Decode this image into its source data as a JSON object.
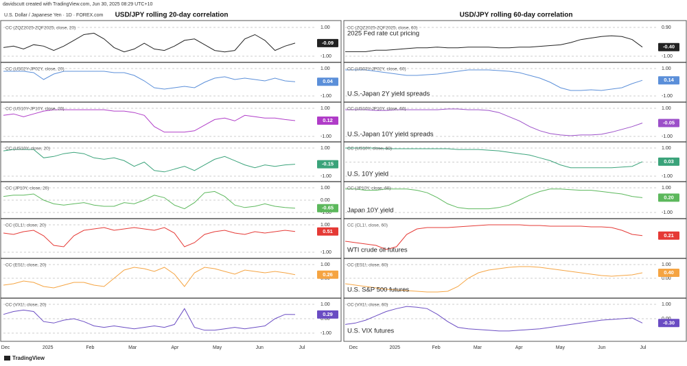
{
  "header": {
    "credit": "davidscutt created with TradingView.com, Jun 30, 2025 08:29 UTC+10",
    "symbol": "U.S. Dollar / Japanese Yen · 1D · FOREX.com",
    "logo": "TradingView"
  },
  "columns": [
    {
      "title": "USD/JPY rolling 20-day correlation",
      "x_labels": [
        "Dec",
        "2025",
        "Feb",
        "Mar",
        "Apr",
        "May",
        "Jun",
        "Jul"
      ]
    },
    {
      "title": "USD/JPY rolling 60-day correlation",
      "x_labels": [
        "Dec",
        "2025",
        "Feb",
        "Mar",
        "Apr",
        "May",
        "Jun",
        "Jul"
      ]
    }
  ],
  "chart_data": [
    {
      "type": "line",
      "ylim": [
        -1,
        1
      ],
      "yticks": [
        {
          "value": 1,
          "label": "1.00"
        },
        {
          "value": -1,
          "label": "-1.00"
        }
      ],
      "series": [
        {
          "name": "CC (ZQZ2025-ZQF2025, close, 20)",
          "color": "#222222",
          "last_label": "-0.09",
          "values": [
            -0.4,
            -0.3,
            -0.5,
            -0.2,
            -0.3,
            -0.6,
            -0.3,
            0.1,
            0.5,
            0.6,
            0.2,
            -0.4,
            -0.7,
            -0.5,
            -0.1,
            -0.5,
            -0.6,
            -0.3,
            0.1,
            0.2,
            -0.2,
            -0.6,
            -0.7,
            -0.6,
            0.2,
            0.5,
            0.1,
            -0.6,
            -0.3,
            -0.09
          ]
        }
      ]
    },
    {
      "type": "line",
      "ylim": [
        -1,
        1
      ],
      "yticks": [
        {
          "value": 1,
          "label": "1.00"
        },
        {
          "value": -1,
          "label": "-1.00"
        }
      ],
      "series": [
        {
          "name": "CC (US02Y-JP02Y, close, 20)",
          "color": "#5b8fd9",
          "last_label": "0.04",
          "values": [
            0.8,
            0.8,
            0.8,
            0.7,
            0.2,
            0.6,
            0.8,
            0.8,
            0.8,
            0.8,
            0.8,
            0.7,
            0.7,
            0.5,
            0.1,
            -0.4,
            -0.5,
            -0.4,
            -0.3,
            -0.4,
            0.0,
            0.3,
            0.4,
            0.2,
            0.3,
            0.2,
            0.1,
            0.3,
            0.1,
            0.04
          ]
        }
      ]
    },
    {
      "type": "line",
      "ylim": [
        -1,
        1
      ],
      "yticks": [
        {
          "value": 1,
          "label": "1.00"
        },
        {
          "value": -1,
          "label": "-1.00"
        }
      ],
      "series": [
        {
          "name": "CC (US10Y-JP10Y, close, 20)",
          "color": "#b03cc8",
          "last_label": "0.12",
          "values": [
            0.5,
            0.6,
            0.4,
            0.6,
            0.8,
            0.9,
            0.9,
            0.9,
            0.9,
            0.9,
            0.9,
            0.8,
            0.8,
            0.7,
            0.5,
            -0.3,
            -0.7,
            -0.7,
            -0.7,
            -0.6,
            -0.2,
            0.2,
            0.3,
            0.1,
            0.5,
            0.4,
            0.3,
            0.3,
            0.2,
            0.12
          ]
        }
      ]
    },
    {
      "type": "line",
      "ylim": [
        -1,
        1
      ],
      "yticks": [
        {
          "value": 1,
          "label": "1.00"
        },
        {
          "value": -1,
          "label": "-1.00"
        }
      ],
      "series": [
        {
          "name": "CC (US10Y, close, 20)",
          "color": "#3aa37a",
          "last_label": "-0.15",
          "values": [
            0.8,
            0.9,
            0.9,
            0.9,
            0.3,
            0.4,
            0.6,
            0.7,
            0.6,
            0.3,
            0.2,
            0.3,
            0.1,
            -0.3,
            0.0,
            -0.6,
            -0.7,
            -0.5,
            -0.3,
            -0.6,
            -0.2,
            0.2,
            0.4,
            0.1,
            -0.2,
            -0.4,
            -0.2,
            -0.3,
            -0.2,
            -0.15
          ]
        }
      ]
    },
    {
      "type": "line",
      "ylim": [
        -1,
        1
      ],
      "yticks": [
        {
          "value": 1,
          "label": "1.00"
        },
        {
          "value": 0,
          "label": "0.00"
        },
        {
          "value": -1,
          "label": "-1.00"
        }
      ],
      "series": [
        {
          "name": "CC (JP10Y, close, 20)",
          "color": "#5cb85c",
          "last_label": "-0.65",
          "values": [
            0.3,
            0.4,
            0.4,
            0.5,
            0.0,
            -0.3,
            -0.4,
            -0.3,
            -0.2,
            -0.4,
            -0.5,
            -0.5,
            -0.2,
            -0.3,
            0.0,
            0.4,
            0.2,
            -0.4,
            -0.7,
            -0.2,
            0.6,
            0.7,
            0.3,
            -0.4,
            -0.6,
            -0.5,
            -0.3,
            -0.5,
            -0.6,
            -0.65
          ]
        }
      ]
    },
    {
      "type": "line",
      "ylim": [
        -1,
        1
      ],
      "yticks": [
        {
          "value": 1,
          "label": "1.00"
        },
        {
          "value": -1,
          "label": "-1.00"
        }
      ],
      "series": [
        {
          "name": "CC (CL1!, close, 20)",
          "color": "#e53935",
          "last_label": "0.51",
          "values": [
            0.4,
            0.3,
            0.5,
            0.6,
            0.2,
            -0.5,
            -0.6,
            0.2,
            0.6,
            0.7,
            0.8,
            0.6,
            0.7,
            0.8,
            0.7,
            0.6,
            0.8,
            0.4,
            -0.6,
            -0.3,
            0.3,
            0.5,
            0.6,
            0.4,
            0.3,
            0.5,
            0.4,
            0.5,
            0.6,
            0.51
          ]
        }
      ]
    },
    {
      "type": "line",
      "ylim": [
        -1,
        1
      ],
      "yticks": [
        {
          "value": 1,
          "label": "1.00"
        },
        {
          "value": 0,
          "label": "0.00"
        }
      ],
      "series": [
        {
          "name": "CC (ES1!, close, 20)",
          "color": "#f5a442",
          "last_label": "0.26",
          "values": [
            -0.5,
            -0.4,
            -0.2,
            -0.3,
            -0.6,
            -0.7,
            -0.5,
            -0.3,
            -0.3,
            -0.5,
            -0.6,
            0.0,
            0.6,
            0.8,
            0.7,
            0.5,
            0.8,
            0.3,
            -0.6,
            0.4,
            0.8,
            0.7,
            0.5,
            0.3,
            0.6,
            0.5,
            0.4,
            0.5,
            0.4,
            0.26
          ]
        }
      ]
    },
    {
      "type": "line",
      "ylim": [
        -1,
        1
      ],
      "yticks": [
        {
          "value": 1,
          "label": "1.00"
        },
        {
          "value": 0,
          "label": "0.00"
        },
        {
          "value": -1,
          "label": "-1.00"
        }
      ],
      "series": [
        {
          "name": "CC (VX1!, close, 20)",
          "color": "#6a4cc3",
          "last_label": "0.29",
          "values": [
            0.3,
            0.5,
            0.6,
            0.5,
            -0.2,
            -0.3,
            -0.1,
            0.0,
            -0.2,
            -0.5,
            -0.6,
            -0.5,
            -0.6,
            -0.7,
            -0.6,
            -0.5,
            -0.6,
            -0.4,
            0.7,
            -0.6,
            -0.8,
            -0.8,
            -0.7,
            -0.6,
            -0.7,
            -0.6,
            -0.5,
            0.0,
            0.3,
            0.29
          ]
        }
      ]
    },
    {
      "type": "line",
      "annotation": "2025 Fed rate cut pricing",
      "ylim": [
        -1,
        0.9
      ],
      "yticks": [
        {
          "value": 0.9,
          "label": "0.90"
        },
        {
          "value": -1,
          "label": "-1.00"
        }
      ],
      "series": [
        {
          "name": "CC (ZQZ2025-ZQF2025, close, 60)",
          "color": "#222222",
          "last_label": "-0.40",
          "values": [
            -0.7,
            -0.7,
            -0.7,
            -0.6,
            -0.6,
            -0.55,
            -0.5,
            -0.45,
            -0.45,
            -0.4,
            -0.45,
            -0.45,
            -0.4,
            -0.4,
            -0.4,
            -0.45,
            -0.45,
            -0.4,
            -0.4,
            -0.35,
            -0.3,
            -0.25,
            -0.1,
            0.1,
            0.2,
            0.3,
            0.35,
            0.3,
            0.1,
            -0.4
          ]
        }
      ]
    },
    {
      "type": "line",
      "annotation": "U.S.-Japan 2Y yield spreads",
      "ylim": [
        -1,
        1
      ],
      "yticks": [
        {
          "value": 1,
          "label": "1.00"
        },
        {
          "value": -1,
          "label": "-1.00"
        }
      ],
      "series": [
        {
          "name": "CC (US02Y-JP02Y, close, 60)",
          "color": "#5b8fd9",
          "last_label": "0.14",
          "values": [
            0.9,
            0.9,
            0.9,
            0.8,
            0.7,
            0.6,
            0.5,
            0.5,
            0.55,
            0.6,
            0.7,
            0.8,
            0.9,
            0.9,
            0.9,
            0.85,
            0.8,
            0.7,
            0.5,
            0.3,
            0.0,
            -0.4,
            -0.6,
            -0.6,
            -0.55,
            -0.6,
            -0.5,
            -0.4,
            -0.1,
            0.14
          ]
        }
      ]
    },
    {
      "type": "line",
      "annotation": "U.S.-Japan 10Y yield spreads",
      "ylim": [
        -1,
        1
      ],
      "yticks": [
        {
          "value": 1,
          "label": "1.00"
        },
        {
          "value": -1,
          "label": "-1.00"
        }
      ],
      "series": [
        {
          "name": "CC (US10Y-JP10Y, close, 60)",
          "color": "#9c4fc9",
          "last_label": "-0.05",
          "values": [
            0.9,
            0.9,
            0.9,
            0.85,
            0.85,
            0.9,
            0.9,
            0.9,
            0.9,
            0.9,
            0.95,
            0.95,
            0.9,
            0.9,
            0.85,
            0.7,
            0.4,
            0.1,
            -0.3,
            -0.6,
            -0.8,
            -0.9,
            -0.95,
            -0.9,
            -0.9,
            -0.85,
            -0.7,
            -0.5,
            -0.3,
            -0.05
          ]
        }
      ]
    },
    {
      "type": "line",
      "annotation": "U.S. 10Y yield",
      "ylim": [
        -1,
        1
      ],
      "yticks": [
        {
          "value": 1,
          "label": "1.00"
        },
        {
          "value": 0,
          "label": "0.00"
        },
        {
          "value": -1,
          "label": "-1.00"
        }
      ],
      "series": [
        {
          "name": "CC (US10Y, close, 60)",
          "color": "#3aa37a",
          "last_label": "0.03",
          "values": [
            1.0,
            1.0,
            1.0,
            1.0,
            0.95,
            0.95,
            0.95,
            0.95,
            0.95,
            0.95,
            0.95,
            0.9,
            0.9,
            0.9,
            0.85,
            0.8,
            0.7,
            0.6,
            0.5,
            0.3,
            0.1,
            -0.2,
            -0.4,
            -0.4,
            -0.4,
            -0.4,
            -0.4,
            -0.35,
            -0.3,
            0.03
          ]
        }
      ]
    },
    {
      "type": "line",
      "annotation": "Japan 10Y yield",
      "ylim": [
        -1,
        1
      ],
      "yticks": [
        {
          "value": 1,
          "label": "1.00"
        },
        {
          "value": -1,
          "label": "-1.00"
        }
      ],
      "series": [
        {
          "name": "CC (JP10Y, close, 60)",
          "color": "#5cb85c",
          "last_label": "0.20",
          "values": [
            0.9,
            0.9,
            0.8,
            0.8,
            0.9,
            0.9,
            0.9,
            0.8,
            0.6,
            0.2,
            -0.3,
            -0.6,
            -0.7,
            -0.7,
            -0.7,
            -0.6,
            -0.4,
            0.0,
            0.4,
            0.7,
            0.9,
            0.9,
            0.85,
            0.8,
            0.8,
            0.7,
            0.6,
            0.5,
            0.3,
            0.2
          ]
        }
      ]
    },
    {
      "type": "line",
      "annotation": "WTI crude oil futures",
      "ylim": [
        -1,
        1
      ],
      "yticks": [],
      "series": [
        {
          "name": "CC (CL1!, close, 60)",
          "color": "#e53935",
          "last_label": "0.21",
          "values": [
            -0.2,
            -0.3,
            -0.4,
            -0.5,
            -0.8,
            -0.6,
            0.3,
            0.7,
            0.8,
            0.8,
            0.8,
            0.85,
            0.9,
            0.95,
            1.0,
            1.0,
            1.0,
            1.0,
            0.95,
            0.95,
            0.9,
            0.9,
            0.9,
            0.9,
            0.85,
            0.85,
            0.8,
            0.6,
            0.3,
            0.21
          ]
        }
      ]
    },
    {
      "type": "line",
      "annotation": "U.S. S&P 500 futures",
      "ylim": [
        -1,
        1
      ],
      "yticks": [
        {
          "value": 1,
          "label": "1.00"
        },
        {
          "value": 0,
          "label": "0.00"
        }
      ],
      "series": [
        {
          "name": "CC (ES1!, close, 60)",
          "color": "#f5a442",
          "last_label": "0.40",
          "values": [
            -0.4,
            -0.5,
            -0.6,
            -0.7,
            -0.8,
            -0.85,
            -0.9,
            -0.95,
            -1.0,
            -1.0,
            -0.95,
            -0.6,
            0.0,
            0.4,
            0.6,
            0.7,
            0.8,
            0.85,
            0.85,
            0.8,
            0.7,
            0.6,
            0.5,
            0.4,
            0.3,
            0.2,
            0.15,
            0.2,
            0.25,
            0.4
          ]
        }
      ]
    },
    {
      "type": "line",
      "annotation": "U.S. VIX futures",
      "ylim": [
        -1,
        1
      ],
      "yticks": [
        {
          "value": 1,
          "label": "1.00"
        },
        {
          "value": 0,
          "label": "0.00"
        }
      ],
      "series": [
        {
          "name": "CC (VX1!, close, 60)",
          "color": "#6a4cc3",
          "last_label": "-0.30",
          "values": [
            -0.4,
            -0.3,
            -0.1,
            0.2,
            0.5,
            0.7,
            0.85,
            0.8,
            0.7,
            0.3,
            -0.2,
            -0.6,
            -0.7,
            -0.75,
            -0.8,
            -0.85,
            -0.85,
            -0.8,
            -0.75,
            -0.7,
            -0.6,
            -0.5,
            -0.4,
            -0.3,
            -0.2,
            -0.1,
            -0.05,
            0.0,
            0.05,
            -0.3
          ]
        }
      ]
    }
  ]
}
